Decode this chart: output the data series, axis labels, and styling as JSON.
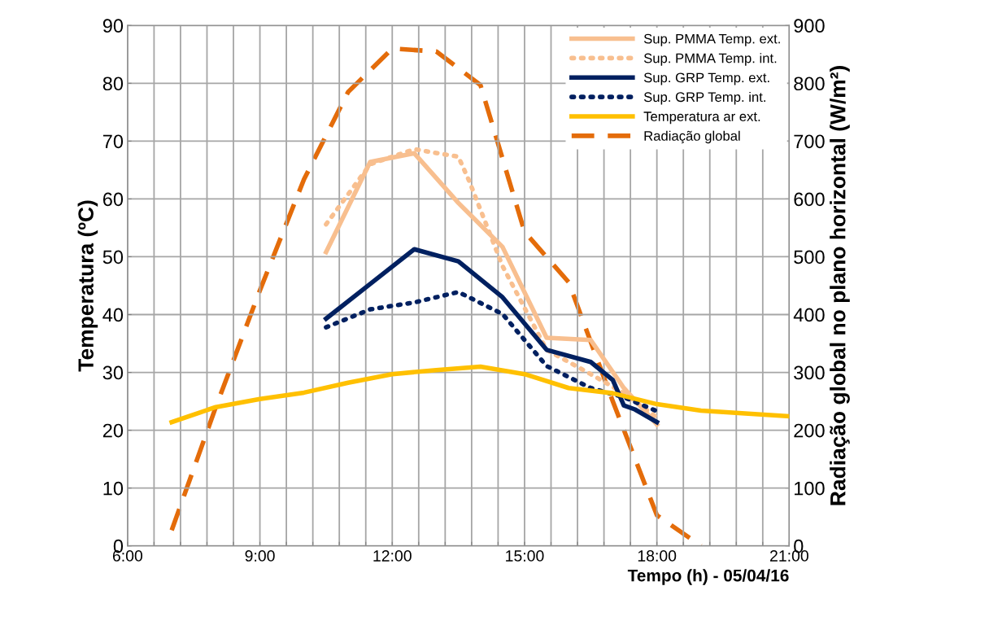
{
  "chart_data": {
    "type": "line",
    "xlabel": "Tempo (h) - 05/04/16",
    "ylabel": "Temperatura (ºC)",
    "y2label": "Radiação global no plano horizontal (W/m²)",
    "xlim": [
      6,
      21
    ],
    "ylim": [
      0,
      90
    ],
    "y2lim": [
      0,
      900
    ],
    "xticks": [
      {
        "value": 6,
        "label": "6:00"
      },
      {
        "value": 6.6,
        "label": null
      },
      {
        "value": 7.2,
        "label": null
      },
      {
        "value": 7.8,
        "label": null
      },
      {
        "value": 8.4,
        "label": null
      },
      {
        "value": 9,
        "label": "9:00"
      },
      {
        "value": 9.6,
        "label": null
      },
      {
        "value": 10.2,
        "label": null
      },
      {
        "value": 10.8,
        "label": null
      },
      {
        "value": 11.4,
        "label": null
      },
      {
        "value": 12,
        "label": "12:00"
      },
      {
        "value": 12.6,
        "label": null
      },
      {
        "value": 13.2,
        "label": null
      },
      {
        "value": 13.8,
        "label": null
      },
      {
        "value": 14.4,
        "label": null
      },
      {
        "value": 15,
        "label": "15:00"
      },
      {
        "value": 15.6,
        "label": null
      },
      {
        "value": 16.2,
        "label": null
      },
      {
        "value": 16.8,
        "label": null
      },
      {
        "value": 17.4,
        "label": null
      },
      {
        "value": 18,
        "label": "18:00"
      },
      {
        "value": 18.6,
        "label": null
      },
      {
        "value": 19.2,
        "label": null
      },
      {
        "value": 19.8,
        "label": null
      },
      {
        "value": 20.4,
        "label": null
      },
      {
        "value": 21,
        "label": "21:00"
      }
    ],
    "yticks": [
      0,
      10,
      20,
      30,
      40,
      50,
      60,
      70,
      80,
      90
    ],
    "y2ticks": [
      0,
      100,
      200,
      300,
      400,
      500,
      600,
      700,
      800,
      900
    ],
    "grid": true,
    "legend": "top right",
    "series": [
      {
        "name": "Sup. PMMA Temp. ext.",
        "color": "#f8bf8f",
        "line_style": "solid",
        "x": [
          10.5,
          11.5,
          12.5,
          13.5,
          14.5,
          15.5,
          16.5,
          17.25,
          18
        ],
        "values": [
          50.8,
          66.4,
          67.9,
          59.3,
          51.7,
          36.0,
          35.6,
          27.3,
          21.0
        ]
      },
      {
        "name": "Sup. PMMA Temp. int.",
        "color": "#f8bf8f",
        "line_style": "dotted",
        "x": [
          10.5,
          11.5,
          12.5,
          13.5,
          13.75,
          14.5,
          15.5,
          16.5,
          17.25,
          18
        ],
        "values": [
          55.6,
          66.0,
          68.6,
          67.3,
          63.0,
          48.4,
          33.9,
          29.7,
          26.4,
          22.2
        ]
      },
      {
        "name": "Sup. GRP Temp. ext.",
        "color": "#002060",
        "line_style": "solid",
        "x": [
          10.5,
          11.5,
          12.5,
          13.5,
          14.5,
          15.5,
          16.5,
          17,
          17.25,
          17.5,
          18
        ],
        "values": [
          39.3,
          45.3,
          51.3,
          49.2,
          43.0,
          33.9,
          31.8,
          28.7,
          24.3,
          23.6,
          21.4
        ]
      },
      {
        "name": "Sup. GRP Temp. int.",
        "color": "#002060",
        "line_style": "dotted",
        "x": [
          10.5,
          11.5,
          12.5,
          13.5,
          14.5,
          15.5,
          16.5,
          17.25,
          18
        ],
        "values": [
          37.8,
          40.9,
          42.1,
          43.9,
          40.1,
          31.1,
          27.3,
          25.7,
          23.3
        ]
      },
      {
        "name": "Temperatura ar ext.",
        "color": "#ffc000",
        "line_style": "solid",
        "x": [
          7,
          8,
          9,
          10,
          11,
          12,
          13,
          14,
          15,
          16,
          17,
          18,
          19,
          20,
          21
        ],
        "values": [
          21.4,
          24.0,
          25.4,
          26.5,
          28.2,
          29.7,
          30.4,
          31.0,
          29.7,
          27.3,
          26.4,
          24.5,
          23.4,
          22.9,
          22.4
        ]
      },
      {
        "name": "Radiação global",
        "color": "#e46c0a",
        "line_style": "dashed",
        "axis": "y2",
        "x": [
          7,
          8,
          9,
          10,
          11,
          12,
          13,
          14,
          15,
          16,
          17,
          18,
          19
        ],
        "values": [
          27,
          240,
          442,
          634,
          785,
          860,
          855,
          797,
          543,
          456,
          250,
          53,
          0
        ]
      }
    ]
  }
}
